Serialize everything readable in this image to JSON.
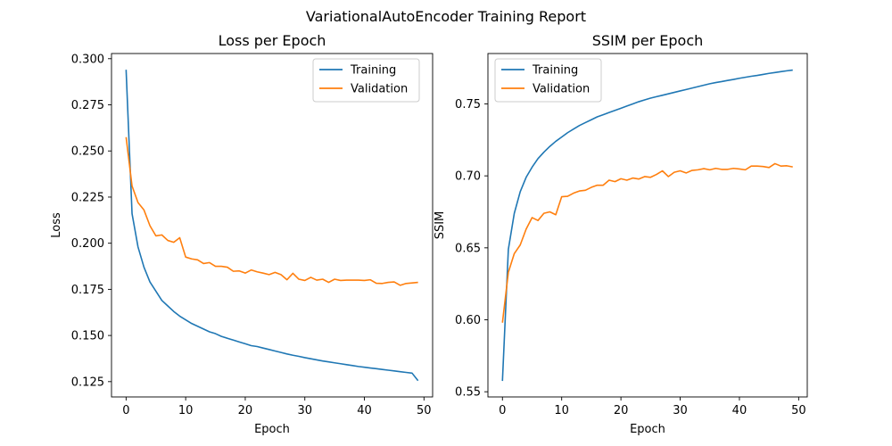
{
  "figure": {
    "suptitle": "VariationalAutoEncoder Training Report"
  },
  "chart_data": [
    {
      "type": "line",
      "title": "Loss per Epoch",
      "xlabel": "Epoch",
      "ylabel": "Loss",
      "xlim": [
        -2.45,
        51.45
      ],
      "ylim": [
        0.1167,
        0.3028
      ],
      "xticks": [
        0,
        10,
        20,
        30,
        40,
        50
      ],
      "yticks": [
        0.125,
        0.15,
        0.175,
        0.2,
        0.225,
        0.25,
        0.275,
        0.3
      ],
      "ytick_labels": [
        "0.125",
        "0.150",
        "0.175",
        "0.200",
        "0.225",
        "0.250",
        "0.275",
        "0.300"
      ],
      "legend_position": "upper right",
      "grid": false,
      "x": [
        0,
        1,
        2,
        3,
        4,
        5,
        6,
        7,
        8,
        9,
        10,
        11,
        12,
        13,
        14,
        15,
        16,
        17,
        18,
        19,
        20,
        21,
        22,
        23,
        24,
        25,
        26,
        27,
        28,
        29,
        30,
        31,
        32,
        33,
        34,
        35,
        36,
        37,
        38,
        39,
        40,
        41,
        42,
        43,
        44,
        45,
        46,
        47,
        48,
        49
      ],
      "series": [
        {
          "name": "Training",
          "color": "#1f77b4",
          "values": [
            0.294,
            0.216,
            0.198,
            0.187,
            0.179,
            0.174,
            0.169,
            0.166,
            0.163,
            0.1605,
            0.1585,
            0.1565,
            0.155,
            0.1535,
            0.152,
            0.151,
            0.1495,
            0.1485,
            0.1475,
            0.1465,
            0.1455,
            0.1445,
            0.144,
            0.1432,
            0.1424,
            0.1416,
            0.1408,
            0.14,
            0.1393,
            0.1387,
            0.138,
            0.1374,
            0.1368,
            0.1362,
            0.1357,
            0.1352,
            0.1347,
            0.1342,
            0.1337,
            0.1332,
            0.1328,
            0.1324,
            0.132,
            0.1316,
            0.1312,
            0.1308,
            0.1304,
            0.13,
            0.1296,
            0.1255
          ]
        },
        {
          "name": "Validation",
          "color": "#ff7f0e",
          "values": [
            0.2575,
            0.231,
            0.222,
            0.218,
            0.2095,
            0.204,
            0.2045,
            0.2015,
            0.2005,
            0.203,
            0.1925,
            0.1915,
            0.191,
            0.189,
            0.1895,
            0.1875,
            0.1875,
            0.187,
            0.1848,
            0.185,
            0.1838,
            0.1855,
            0.1845,
            0.1838,
            0.183,
            0.1842,
            0.183,
            0.1802,
            0.1837,
            0.1805,
            0.1798,
            0.1815,
            0.18,
            0.1805,
            0.1788,
            0.1805,
            0.1798,
            0.18,
            0.18,
            0.18,
            0.1798,
            0.1802,
            0.1783,
            0.1782,
            0.1788,
            0.179,
            0.1772,
            0.1782,
            0.1785,
            0.1788
          ]
        }
      ]
    },
    {
      "type": "line",
      "title": "SSIM per Epoch",
      "xlabel": "Epoch",
      "ylabel": "SSIM",
      "xlim": [
        -2.45,
        51.45
      ],
      "ylim": [
        0.5464,
        0.785
      ],
      "xticks": [
        0,
        10,
        20,
        30,
        40,
        50
      ],
      "yticks": [
        0.55,
        0.6,
        0.65,
        0.7,
        0.75
      ],
      "ytick_labels": [
        "0.55",
        "0.60",
        "0.65",
        "0.70",
        "0.75"
      ],
      "legend_position": "upper left",
      "grid": false,
      "x": [
        0,
        1,
        2,
        3,
        4,
        5,
        6,
        7,
        8,
        9,
        10,
        11,
        12,
        13,
        14,
        15,
        16,
        17,
        18,
        19,
        20,
        21,
        22,
        23,
        24,
        25,
        26,
        27,
        28,
        29,
        30,
        31,
        32,
        33,
        34,
        35,
        36,
        37,
        38,
        39,
        40,
        41,
        42,
        43,
        44,
        45,
        46,
        47,
        48,
        49
      ],
      "series": [
        {
          "name": "Training",
          "color": "#1f77b4",
          "values": [
            0.5575,
            0.649,
            0.674,
            0.689,
            0.699,
            0.706,
            0.712,
            0.7165,
            0.7205,
            0.724,
            0.727,
            0.73,
            0.7325,
            0.735,
            0.737,
            0.739,
            0.741,
            0.7425,
            0.744,
            0.7455,
            0.747,
            0.7485,
            0.75,
            0.7515,
            0.7528,
            0.754,
            0.755,
            0.756,
            0.757,
            0.758,
            0.759,
            0.76,
            0.761,
            0.762,
            0.763,
            0.764,
            0.7648,
            0.7655,
            0.7663,
            0.767,
            0.7678,
            0.7685,
            0.7692,
            0.7698,
            0.7705,
            0.7712,
            0.7718,
            0.7724,
            0.773,
            0.7735
          ]
        },
        {
          "name": "Validation",
          "color": "#ff7f0e",
          "values": [
            0.598,
            0.633,
            0.646,
            0.652,
            0.663,
            0.671,
            0.669,
            0.674,
            0.675,
            0.673,
            0.6855,
            0.6858,
            0.688,
            0.6895,
            0.69,
            0.692,
            0.6935,
            0.6935,
            0.697,
            0.696,
            0.698,
            0.697,
            0.6985,
            0.6978,
            0.6995,
            0.699,
            0.701,
            0.7035,
            0.6995,
            0.7025,
            0.7035,
            0.702,
            0.7038,
            0.7042,
            0.705,
            0.7042,
            0.7052,
            0.7045,
            0.7045,
            0.7052,
            0.7048,
            0.7042,
            0.7068,
            0.7068,
            0.7065,
            0.7058,
            0.7085,
            0.7068,
            0.707,
            0.7062
          ]
        }
      ]
    }
  ]
}
